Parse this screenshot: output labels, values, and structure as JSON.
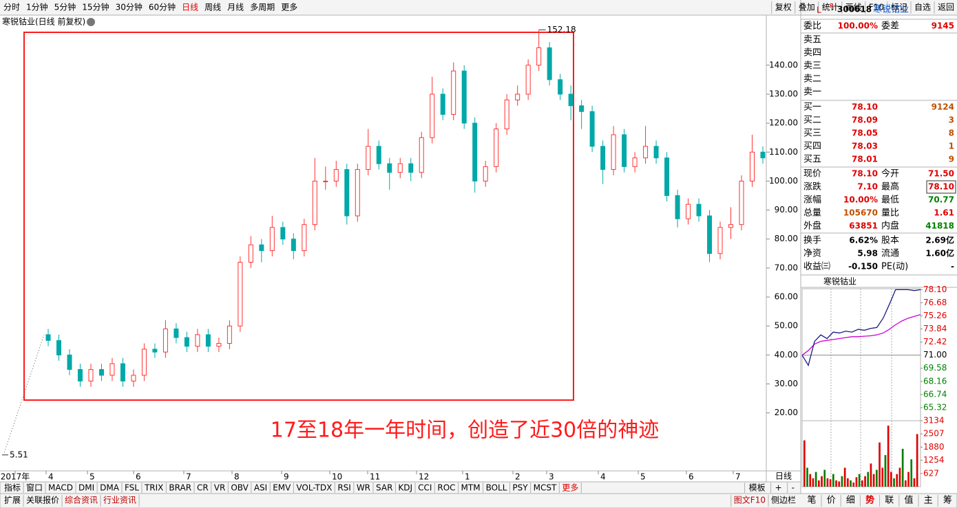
{
  "toolbar": {
    "left": [
      "分时",
      "1分钟",
      "5分钟",
      "15分钟",
      "30分钟",
      "60分钟",
      "日线",
      "周线",
      "月线",
      "多周期",
      "更多"
    ],
    "active": "日线",
    "right": [
      "复权",
      "叠加",
      "统计",
      "画线",
      "F10",
      "标记",
      "自选",
      "返回"
    ]
  },
  "chart_data": {
    "type": "candlestick",
    "title": "寒锐钴业(日线 前复权)",
    "candles": [
      [
        47,
        49,
        43,
        45
      ],
      [
        45,
        47,
        38,
        40
      ],
      [
        40,
        42,
        33,
        35
      ],
      [
        35,
        37,
        29,
        31
      ],
      [
        31,
        37,
        29,
        35
      ],
      [
        35,
        37,
        31,
        33
      ],
      [
        33,
        39,
        31,
        37
      ],
      [
        37,
        39,
        29,
        31
      ],
      [
        31,
        35,
        29,
        33
      ],
      [
        33,
        44,
        31,
        42
      ],
      [
        42,
        44,
        39,
        41
      ],
      [
        41,
        52,
        39,
        49
      ],
      [
        49,
        51,
        44,
        46
      ],
      [
        46,
        48,
        41,
        43
      ],
      [
        43,
        49,
        41,
        47
      ],
      [
        47,
        49,
        41,
        43
      ],
      [
        43,
        46,
        41,
        44
      ],
      [
        44,
        52,
        42,
        50
      ],
      [
        50,
        74,
        48,
        72
      ],
      [
        72,
        81,
        70,
        78
      ],
      [
        78,
        80,
        72,
        76
      ],
      [
        76,
        88,
        74,
        84
      ],
      [
        84,
        86,
        78,
        80
      ],
      [
        80,
        82,
        73,
        76
      ],
      [
        76,
        87,
        74,
        85
      ],
      [
        85,
        108,
        83,
        100
      ],
      [
        100,
        105,
        97,
        100
      ],
      [
        100,
        107,
        98,
        104
      ],
      [
        104,
        106,
        85,
        88
      ],
      [
        88,
        106,
        86,
        104
      ],
      [
        104,
        118,
        102,
        112
      ],
      [
        112,
        114,
        104,
        106
      ],
      [
        106,
        108,
        97,
        103
      ],
      [
        103,
        108,
        101,
        106
      ],
      [
        106,
        108,
        100,
        103
      ],
      [
        103,
        117,
        101,
        115
      ],
      [
        115,
        136,
        113,
        130
      ],
      [
        130,
        132,
        121,
        123
      ],
      [
        123,
        141,
        121,
        138
      ],
      [
        138,
        140,
        118,
        120
      ],
      [
        120,
        122,
        96,
        100
      ],
      [
        100,
        107,
        98,
        105
      ],
      [
        105,
        120,
        103,
        118
      ],
      [
        118,
        130,
        116,
        128
      ],
      [
        128,
        133,
        126,
        130
      ],
      [
        130,
        142,
        128,
        140
      ],
      [
        140,
        152.18,
        138,
        146
      ],
      [
        146,
        148,
        133,
        135
      ],
      [
        135,
        137,
        128,
        130
      ],
      [
        130,
        133,
        121,
        126
      ],
      [
        126,
        128,
        118,
        124
      ],
      [
        124,
        126,
        110,
        112
      ],
      [
        112,
        114,
        99,
        104
      ],
      [
        104,
        119,
        102,
        116
      ],
      [
        116,
        118,
        103,
        105
      ],
      [
        105,
        110,
        103,
        108
      ],
      [
        108,
        119,
        106,
        112
      ],
      [
        112,
        114,
        106,
        108
      ],
      [
        108,
        110,
        93,
        95
      ],
      [
        95,
        97,
        84,
        87
      ],
      [
        87,
        94,
        85,
        92
      ],
      [
        92,
        94,
        86,
        88
      ],
      [
        88,
        90,
        72,
        75
      ],
      [
        75,
        86,
        73,
        84
      ],
      [
        84,
        91,
        80,
        85
      ],
      [
        85,
        102,
        83,
        100
      ],
      [
        100,
        116,
        98,
        110
      ],
      [
        110,
        112,
        106,
        108
      ]
    ],
    "ylim": [
      0,
      153
    ],
    "yticks": [
      {
        "value": 20,
        "label": "20.00"
      },
      {
        "value": 30,
        "label": "30.00"
      },
      {
        "value": 40,
        "label": "40.00"
      },
      {
        "value": 50,
        "label": "50.00"
      },
      {
        "value": 60,
        "label": "60.00"
      },
      {
        "value": 70,
        "label": "70.00"
      },
      {
        "value": 80,
        "label": "80.00"
      },
      {
        "value": 90,
        "label": "90.00"
      },
      {
        "value": 100,
        "label": "100.00"
      },
      {
        "value": 110,
        "label": "110.00"
      },
      {
        "value": 120,
        "label": "120.00"
      },
      {
        "value": 130,
        "label": "130.00"
      },
      {
        "value": 140,
        "label": "140.00"
      }
    ],
    "x_labels": [
      "2017年",
      "4",
      "5",
      "6",
      "7",
      "8",
      "9",
      "10",
      "11",
      "12",
      "1",
      "2",
      "3",
      "4",
      "5",
      "6",
      "7"
    ],
    "period_label": "日线",
    "high_label": 152.18,
    "high_index": 46,
    "low_label": 5.51,
    "up_color": "#ff3232",
    "down_color": "#00a8a8"
  },
  "annotation": "17至18年一年时间，创造了近30倍的神迹",
  "indicator_tabs": [
    "指标",
    "窗口",
    "MACD",
    "DMI",
    "DMA",
    "FSL",
    "TRIX",
    "BRAR",
    "CR",
    "VR",
    "OBV",
    "ASI",
    "EMV",
    "VOL-TDX",
    "RSI",
    "WR",
    "SAR",
    "KDJ",
    "CCI",
    "ROC",
    "MTM",
    "BOLL",
    "PSY",
    "MCST",
    "更多"
  ],
  "indicator_right": [
    "模板",
    "+",
    "-"
  ],
  "bottom_tabs": [
    "扩展",
    "关联报价",
    "综合资讯",
    "行业资讯"
  ],
  "bottom_right": [
    "图文F10",
    "侧边栏"
  ],
  "panel": {
    "flags": [
      "L",
      "R"
    ],
    "code": "300618",
    "name": "寒锐钴业",
    "ratio": [
      "委比",
      "100.00%",
      "委差",
      "9145"
    ],
    "asks": [
      "卖五",
      "卖四",
      "卖三",
      "卖二",
      "卖一"
    ],
    "bids": [
      [
        "买一",
        "78.10",
        "9124"
      ],
      [
        "买二",
        "78.09",
        "3"
      ],
      [
        "买三",
        "78.05",
        "8"
      ],
      [
        "买四",
        "78.03",
        "1"
      ],
      [
        "买五",
        "78.01",
        "9"
      ]
    ],
    "stats": [
      [
        "现价",
        "78.10",
        "今开",
        "71.50"
      ],
      [
        "涨跌",
        "7.10",
        "最高",
        "78.10"
      ],
      [
        "涨幅",
        "10.00%",
        "最低",
        "70.77"
      ],
      [
        "总量",
        "105670",
        "量比",
        "1.61"
      ],
      [
        "外盘",
        "63851",
        "内盘",
        "41818"
      ]
    ],
    "finance": [
      [
        "换手",
        "6.62%",
        "股本",
        "2.69亿"
      ],
      [
        "净资",
        "5.98",
        "流通",
        "1.60亿"
      ],
      [
        "收益㈢",
        "-0.150",
        "PE(动)",
        "-"
      ]
    ],
    "tabs": [
      "笔",
      "价",
      "细",
      "势",
      "联",
      "值",
      "主",
      "筹"
    ]
  },
  "mini_chart": {
    "title": "寒锐钴业",
    "ylim": [
      63.9,
      78.2
    ],
    "yticks": [
      {
        "value": 78.1,
        "label": "78.10"
      },
      {
        "value": 76.68,
        "label": "76.68"
      },
      {
        "value": 75.26,
        "label": "75.26"
      },
      {
        "value": 73.84,
        "label": "73.84"
      },
      {
        "value": 72.42,
        "label": "72.42"
      },
      {
        "value": 71.0,
        "label": "71.00"
      },
      {
        "value": 69.58,
        "label": "69.58"
      },
      {
        "value": 68.16,
        "label": "68.16"
      },
      {
        "value": 66.74,
        "label": "66.74"
      },
      {
        "value": 65.32,
        "label": "65.32"
      }
    ],
    "price": [
      71.0,
      69.9,
      72.5,
      73.2,
      72.8,
      73.5,
      73.4,
      73.6,
      73.5,
      73.8,
      73.7,
      73.9,
      74.0,
      75.0,
      76.5,
      78.1,
      78.1,
      78.1,
      78.0,
      78.1
    ],
    "avg": [
      71.0,
      71.5,
      72.2,
      72.5,
      72.6,
      72.7,
      72.8,
      72.9,
      73.0,
      73.0,
      73.05,
      73.1,
      73.2,
      73.4,
      73.8,
      74.3,
      74.7,
      75.0,
      75.2,
      75.4
    ],
    "vol_ylim": [
      0,
      3134
    ],
    "vol_ticks": [
      3134,
      2507,
      1880,
      1254,
      627
    ],
    "volume": [
      2200,
      900,
      600,
      400,
      700,
      300,
      500,
      800,
      400,
      350,
      600,
      300,
      250,
      500,
      900,
      400,
      300,
      200,
      450,
      600,
      300,
      500,
      700,
      1100,
      600,
      800,
      2100,
      900,
      1500,
      2900,
      700,
      400,
      600,
      900,
      1800,
      300,
      700,
      1300,
      400,
      2500
    ]
  }
}
